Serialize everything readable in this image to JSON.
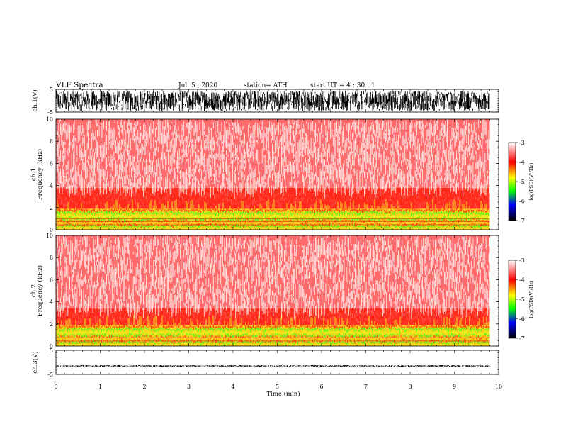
{
  "header": {
    "title": "VLF  Spectra",
    "date": "Jul.  5  , 2020",
    "station": "station= ATH",
    "start": "start  UT  =   4  : 30 : 1"
  },
  "chart_data": [
    {
      "type": "line",
      "name": "ch1-waveform",
      "ylabel": "ch.1(V)",
      "ylim": [
        -5,
        5
      ],
      "yticks": [
        "5",
        "-5"
      ],
      "xlim": [
        0,
        10
      ],
      "data_end_min": 9.8,
      "amplitude_v": 4.5,
      "color": "#000000"
    },
    {
      "type": "heatmap",
      "name": "ch1-spectrogram",
      "ylabel": "ch.1 Frequency  (kHz)",
      "ylim": [
        0,
        10
      ],
      "yticks": [
        "0",
        "2",
        "4",
        "6",
        "8",
        "10"
      ],
      "xlim": [
        0,
        10
      ],
      "data_end_min": 9.8,
      "bands_khz": [
        {
          "from": 0,
          "to": 1.9,
          "level": -4.6
        },
        {
          "from": 1.9,
          "to": 3.8,
          "level": -3.8
        },
        {
          "from": 3.8,
          "to": 10,
          "level": -3.3
        }
      ],
      "colorbar": {
        "label": "log(PSD)(V²/Hz)",
        "range": [
          -7,
          -3
        ],
        "ticks": [
          "-3",
          "-4",
          "-5",
          "-6",
          "-7"
        ],
        "colors": [
          "#ffffff",
          "#ff0000",
          "#ffff00",
          "#00ff00",
          "#0000ff",
          "#000000"
        ]
      }
    },
    {
      "type": "heatmap",
      "name": "ch2-spectrogram",
      "ylabel": "ch.2 Frequency  (kHz)",
      "ylim": [
        0,
        10
      ],
      "yticks": [
        "0",
        "2",
        "4",
        "6",
        "8",
        "10"
      ],
      "xlim": [
        0,
        10
      ],
      "data_end_min": 9.8,
      "bands_khz": [
        {
          "from": 0,
          "to": 1.9,
          "level": -4.6
        },
        {
          "from": 1.9,
          "to": 3.4,
          "level": -3.8
        },
        {
          "from": 3.4,
          "to": 10,
          "level": -3.3
        }
      ],
      "colorbar": {
        "label": "log(PSD)(V²/Hz)",
        "range": [
          -7,
          -3
        ],
        "ticks": [
          "-3",
          "-4",
          "-5",
          "-6",
          "-7"
        ],
        "colors": [
          "#ffffff",
          "#ff0000",
          "#ffff00",
          "#00ff00",
          "#0000ff",
          "#000000"
        ]
      }
    },
    {
      "type": "line",
      "name": "ch3-waveform",
      "ylabel": "ch.3(V)",
      "ylim": [
        -5,
        5
      ],
      "yticks": [
        "5",
        "-5"
      ],
      "xlim": [
        0,
        10
      ],
      "data_end_min": 9.8,
      "amplitude_v": 0.4,
      "offset_v": -1.5,
      "color": "#000000"
    }
  ],
  "xaxis": {
    "label": "Time  (min)",
    "ticks": [
      "0",
      "1",
      "2",
      "3",
      "4",
      "5",
      "6",
      "7",
      "8",
      "9",
      "10"
    ]
  }
}
